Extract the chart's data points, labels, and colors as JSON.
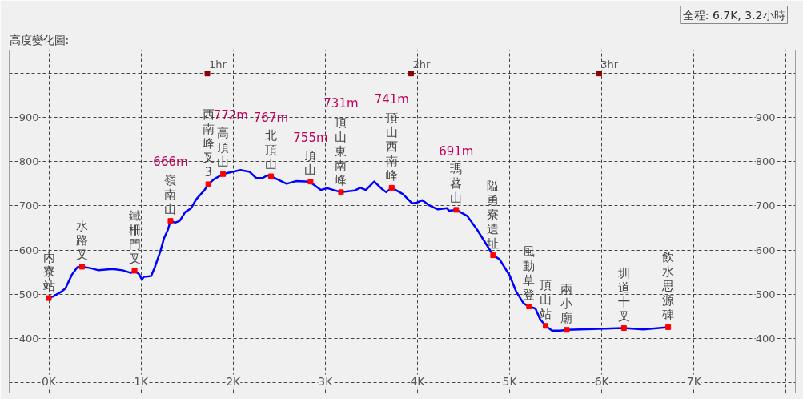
{
  "chart_data": {
    "type": "line",
    "title": "高度變化圖:",
    "subtitle": "全程: 6.7K, 3.2小時",
    "xlim": [
      -0.43,
      8.1
    ],
    "ylim": [
      276,
      1053
    ],
    "xticks": [
      {
        "value": 0,
        "label": "0K"
      },
      {
        "value": 1,
        "label": "1K"
      },
      {
        "value": 2,
        "label": "2K"
      },
      {
        "value": 3,
        "label": "3K"
      },
      {
        "value": 4,
        "label": "4K"
      },
      {
        "value": 5,
        "label": "5K"
      },
      {
        "value": 6,
        "label": "6K"
      },
      {
        "value": 7,
        "label": "7K"
      },
      {
        "value": 8,
        "label": null
      }
    ],
    "yticks": [
      {
        "value": 300,
        "label": null
      },
      400,
      500,
      600,
      700,
      800,
      900,
      {
        "value": 1000,
        "label": null
      }
    ],
    "y2lim": [
      276,
      1053
    ],
    "y2ticks": [
      400,
      500,
      600,
      700,
      800,
      900
    ],
    "grid": true,
    "series": [
      {
        "color": "#0000ff",
        "x": [
          0.0,
          0.05,
          0.14,
          0.18,
          0.25,
          0.31,
          0.36,
          0.45,
          0.54,
          0.69,
          0.8,
          0.89,
          0.93,
          0.98,
          1.01,
          1.03,
          1.11,
          1.15,
          1.21,
          1.25,
          1.29,
          1.32,
          1.37,
          1.42,
          1.48,
          1.54,
          1.6,
          1.69,
          1.73,
          1.79,
          1.89,
          1.99,
          2.08,
          2.18,
          2.25,
          2.32,
          2.37,
          2.41,
          2.48,
          2.58,
          2.68,
          2.83,
          2.95,
          3.02,
          3.17,
          3.32,
          3.38,
          3.44,
          3.53,
          3.61,
          3.66,
          3.72,
          3.84,
          3.94,
          3.99,
          4.05,
          4.13,
          4.22,
          4.32,
          4.34,
          4.42,
          4.54,
          4.65,
          4.74,
          4.82,
          4.89,
          5.0,
          5.07,
          5.15,
          5.21,
          5.28,
          5.33,
          5.39,
          5.46,
          5.55,
          5.62,
          5.9,
          6.24,
          6.45,
          6.72
        ],
        "values": [
          491,
          495,
          506,
          513,
          544,
          561,
          562,
          559,
          554,
          557,
          554,
          548,
          553,
          545,
          533,
          539,
          541,
          561,
          597,
          627,
          645,
          666,
          662,
          666,
          686,
          694,
          715,
          736,
          749,
          760,
          772,
          777,
          781,
          777,
          763,
          763,
          769,
          767,
          760,
          750,
          756,
          755,
          736,
          740,
          731,
          735,
          741,
          736,
          755,
          739,
          731,
          741,
          727,
          706,
          707,
          713,
          701,
          692,
          695,
          689,
          691,
          677,
          645,
          615,
          588,
          579,
          542,
          506,
          479,
          472,
          467,
          443,
          428,
          417,
          417,
          419,
          421,
          423,
          420,
          425
        ]
      },
      {
        "type": "scatter",
        "color": "#ff0000",
        "marker": "square",
        "x": [
          0.0,
          0.36,
          0.93,
          1.32,
          1.73,
          1.89,
          2.41,
          2.84,
          3.17,
          3.72,
          4.42,
          4.82,
          5.21,
          5.39,
          5.62,
          6.24,
          6.72
        ],
        "values": [
          491,
          562,
          553,
          666,
          749,
          772,
          767,
          755,
          731,
          741,
          691,
          588,
          472,
          428,
          419,
          423,
          425
        ]
      },
      {
        "type": "scatter",
        "color": "#8b0000",
        "marker": "square",
        "x": [
          1.72,
          3.93,
          5.97
        ],
        "values": [
          1000,
          1000,
          1000
        ]
      }
    ],
    "annotations": [
      {
        "text": "內寮站",
        "x": 0.0,
        "y": 491
      },
      {
        "text": "水路叉",
        "x": 0.36,
        "y": 562
      },
      {
        "text": "鐵柵門叉",
        "x": 0.93,
        "y": 553
      },
      {
        "text": "嶺南山",
        "x": 1.32,
        "y": 666
      },
      "666m",
      {
        "text": "西南峰叉3",
        "x": 1.73,
        "y": 749
      },
      {
        "text": "高頂山",
        "x": 1.89,
        "y": 772
      },
      "772m",
      {
        "text": "北頂山",
        "x": 2.41,
        "y": 767
      },
      "767m",
      {
        "text": "頂山",
        "x": 2.84,
        "y": 755
      },
      "755m",
      {
        "text": "頂山東南峰",
        "x": 3.17,
        "y": 731
      },
      "731m",
      {
        "text": "頂山西南峰",
        "x": 3.72,
        "y": 741
      },
      "741m",
      {
        "text": "瑪蕃山",
        "x": 4.42,
        "y": 691
      },
      "691m",
      {
        "text": "隘勇寮遺址",
        "x": 4.82,
        "y": 588
      },
      {
        "text": "風動草登",
        "x": 5.21,
        "y": 472
      },
      {
        "text": "頂山站",
        "x": 5.39,
        "y": 428
      },
      {
        "text": "兩小廟",
        "x": 5.62,
        "y": 419
      },
      {
        "text": "圳道十叉",
        "x": 6.24,
        "y": 423
      },
      {
        "text": "飲水思源碑",
        "x": 6.72,
        "y": 425
      },
      {
        "text": "1hr",
        "x": 1.72,
        "y": 1000
      },
      {
        "text": "2hr",
        "x": 3.93,
        "y": 1000
      },
      {
        "text": "3hr",
        "x": 5.97,
        "y": 1000
      }
    ]
  }
}
